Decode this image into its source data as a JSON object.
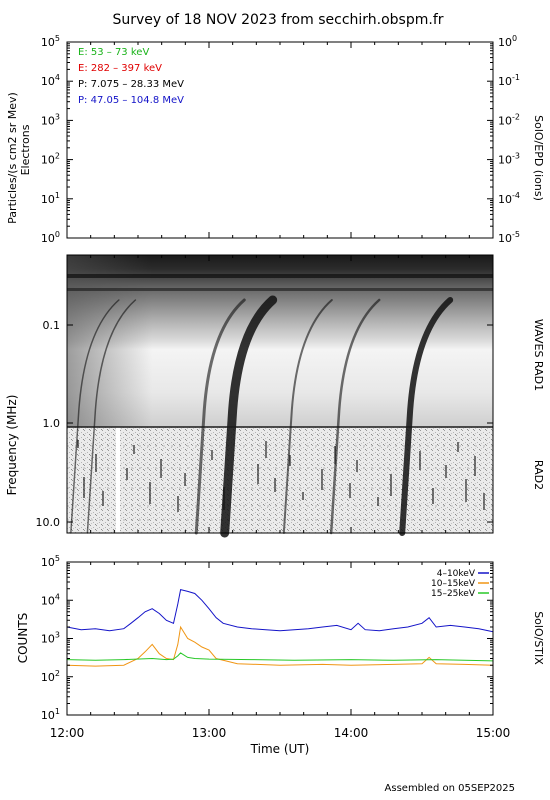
{
  "title": "Survey of 18 NOV 2023 from secchirh.obspm.fr",
  "footer": "Assembled on 05SEP2025",
  "xlabel": "Time (UT)",
  "x_ticks": [
    "12:00",
    "13:00",
    "14:00",
    "15:00"
  ],
  "colors": {
    "blue": "#1414c8",
    "orange": "#f09614",
    "green": "#28c828",
    "red": "#e00000"
  },
  "chart_data": [
    {
      "type": "line",
      "panel": "particles",
      "ylabel": "Particles/(s cm2 sr Mev)",
      "ylabel2": "Electrons",
      "right_label": "SolO/EPD (ions)",
      "y_log": true,
      "ylim": [
        1,
        100000
      ],
      "y2lim": [
        1e-05,
        1
      ],
      "y_ticks": [
        "10",
        "10",
        "10",
        "10",
        "10",
        "10"
      ],
      "y_exps": [
        "0",
        "1",
        "2",
        "3",
        "4",
        "5"
      ],
      "y2_ticks": [
        "10",
        "10",
        "10",
        "10",
        "10",
        "10"
      ],
      "y2_exps": [
        "-5",
        "-4",
        "-3",
        "-2",
        "-1",
        "0"
      ],
      "legend": [
        {
          "text": "E: 53 – 73 keV",
          "color": "#1ab31a"
        },
        {
          "text": "E: 282 – 397 keV",
          "color": "#e00000"
        },
        {
          "text": "P: 7.075 – 28.33 MeV",
          "color": "#000000"
        },
        {
          "text": "P: 47.05 – 104.8 MeV",
          "color": "#1414c8"
        }
      ],
      "series": []
    },
    {
      "type": "heatmap",
      "panel": "radio",
      "ylabel": "Frequency (MHz)",
      "y_log": true,
      "y_ticks": [
        "0.1",
        "1.0",
        "10.0"
      ],
      "right_labels": [
        "WAVES RAD1",
        "RAD2"
      ],
      "features": [
        {
          "name": "burst",
          "time": "12:05"
        },
        {
          "name": "burst",
          "time": "12:12"
        },
        {
          "name": "burst",
          "time": "12:58"
        },
        {
          "name": "burst",
          "time": "13:10"
        },
        {
          "name": "burst",
          "time": "13:35"
        },
        {
          "name": "burst",
          "time": "13:55"
        },
        {
          "name": "burst",
          "time": "14:25"
        }
      ]
    },
    {
      "type": "line",
      "panel": "stix",
      "ylabel": "COUNTS",
      "right_label": "SolO/STIX",
      "y_log": true,
      "ylim": [
        10,
        100000
      ],
      "y_ticks": [
        "10",
        "10",
        "10",
        "10",
        "10"
      ],
      "y_exps": [
        "1",
        "2",
        "3",
        "4",
        "5"
      ],
      "x_unit": "hours UT",
      "xlim": [
        12,
        15
      ],
      "series": [
        {
          "name": "4–10keV",
          "color": "#1414c8",
          "x": [
            12.0,
            12.1,
            12.2,
            12.3,
            12.4,
            12.45,
            12.5,
            12.55,
            12.6,
            12.65,
            12.7,
            12.75,
            12.78,
            12.8,
            12.85,
            12.9,
            12.95,
            13.0,
            13.05,
            13.1,
            13.2,
            13.3,
            13.4,
            13.5,
            13.6,
            13.7,
            13.8,
            13.9,
            14.0,
            14.05,
            14.1,
            14.2,
            14.3,
            14.4,
            14.5,
            14.55,
            14.6,
            14.7,
            14.8,
            14.9,
            15.0
          ],
          "values": [
            2000,
            1700,
            1800,
            1600,
            1800,
            2500,
            3500,
            5000,
            6000,
            4500,
            3000,
            2500,
            8000,
            19000,
            17000,
            15000,
            10000,
            6000,
            3500,
            2500,
            2000,
            1800,
            1700,
            1600,
            1700,
            1800,
            2000,
            2200,
            1700,
            2500,
            1700,
            1600,
            1800,
            2000,
            2500,
            3500,
            2000,
            2200,
            2000,
            1800,
            1500
          ]
        },
        {
          "name": "10–15keV",
          "color": "#f09614",
          "x": [
            12.0,
            12.2,
            12.4,
            12.5,
            12.55,
            12.6,
            12.65,
            12.7,
            12.75,
            12.78,
            12.8,
            12.85,
            12.9,
            12.95,
            13.0,
            13.05,
            13.2,
            13.5,
            13.8,
            14.0,
            14.3,
            14.5,
            14.55,
            14.6,
            14.8,
            15.0
          ],
          "values": [
            200,
            190,
            200,
            300,
            450,
            700,
            400,
            300,
            280,
            700,
            2000,
            1000,
            800,
            600,
            500,
            300,
            220,
            200,
            210,
            200,
            210,
            220,
            320,
            220,
            210,
            200
          ]
        },
        {
          "name": "15–25keV",
          "color": "#28c828",
          "x": [
            12.0,
            12.2,
            12.4,
            12.6,
            12.7,
            12.75,
            12.78,
            12.8,
            12.85,
            12.9,
            13.0,
            13.3,
            13.6,
            14.0,
            14.3,
            14.6,
            15.0
          ],
          "values": [
            280,
            270,
            280,
            300,
            280,
            290,
            350,
            420,
            320,
            300,
            290,
            280,
            270,
            280,
            270,
            280,
            260
          ]
        }
      ]
    }
  ]
}
